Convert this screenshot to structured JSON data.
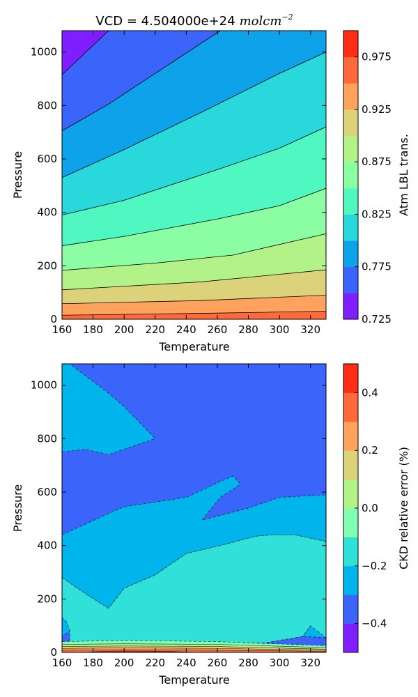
{
  "chart_data": [
    {
      "type": "contourf",
      "title_prefix": "VCD = 4.504000e+24",
      "title_units": "molcm",
      "title_exponent": "−2",
      "xlabel": "Temperature",
      "ylabel": "Pressure",
      "xlim": [
        160,
        330
      ],
      "ylim": [
        0,
        1080
      ],
      "xticks": [
        "160",
        "180",
        "200",
        "220",
        "240",
        "260",
        "280",
        "300",
        "320"
      ],
      "yticks": [
        "0",
        "200",
        "400",
        "600",
        "800",
        "1000"
      ],
      "colorbar": {
        "label": "Atm LBL trans.",
        "levels": [
          0.725,
          0.75,
          0.775,
          0.8,
          0.825,
          0.85,
          0.875,
          0.9,
          0.925,
          0.95,
          0.975,
          1.0
        ],
        "ticks": [
          "0.725",
          "0.775",
          "0.825",
          "0.875",
          "0.925",
          "0.975"
        ],
        "colors": [
          "#7f1fff",
          "#3b64fa",
          "#0ea2eb",
          "#28d8db",
          "#51f7c0",
          "#8bfea4",
          "#b2f288",
          "#dcd27a",
          "#ffa25d",
          "#ff6a3b",
          "#ff2d16"
        ]
      },
      "contour_lines": [
        {
          "level": 0.75,
          "points": [
            [
              160,
              915
            ],
            [
              190,
              1080
            ]
          ]
        },
        {
          "level": 0.775,
          "points": [
            [
              160,
              705
            ],
            [
              190,
              805
            ],
            [
              220,
              920
            ],
            [
              262,
              1080
            ]
          ]
        },
        {
          "level": 0.8,
          "points": [
            [
              160,
              530
            ],
            [
              200,
              635
            ],
            [
              250,
              775
            ],
            [
              300,
              920
            ],
            [
              330,
              1000
            ]
          ]
        },
        {
          "level": 0.825,
          "points": [
            [
              160,
              390
            ],
            [
              200,
              445
            ],
            [
              260,
              560
            ],
            [
              300,
              640
            ],
            [
              330,
              720
            ]
          ]
        },
        {
          "level": 0.85,
          "points": [
            [
              160,
              275
            ],
            [
              200,
              310
            ],
            [
              260,
              375
            ],
            [
              300,
              425
            ],
            [
              330,
              490
            ]
          ]
        },
        {
          "level": 0.875,
          "points": [
            [
              160,
              183
            ],
            [
              220,
              210
            ],
            [
              270,
              240
            ],
            [
              330,
              320
            ]
          ]
        },
        {
          "level": 0.9,
          "points": [
            [
              160,
              110
            ],
            [
              250,
              140
            ],
            [
              330,
              185
            ]
          ]
        },
        {
          "level": 0.925,
          "points": [
            [
              160,
              58
            ],
            [
              250,
              70
            ],
            [
              330,
              90
            ]
          ]
        },
        {
          "level": 0.95,
          "points": [
            [
              160,
              15
            ],
            [
              250,
              22
            ],
            [
              330,
              30
            ]
          ]
        }
      ]
    },
    {
      "type": "contourf",
      "xlabel": "Temperature",
      "ylabel": "Pressure",
      "xlim": [
        160,
        330
      ],
      "ylim": [
        0,
        1080
      ],
      "xticks": [
        "160",
        "180",
        "200",
        "220",
        "240",
        "260",
        "280",
        "300",
        "320"
      ],
      "yticks": [
        "0",
        "200",
        "400",
        "600",
        "800",
        "1000"
      ],
      "colorbar": {
        "label": "CKD relative error (%)",
        "levels": [
          -0.5,
          -0.4,
          -0.3,
          -0.2,
          -0.1,
          0.0,
          0.1,
          0.2,
          0.3,
          0.4,
          0.5
        ],
        "ticks": [
          "−0.4",
          "−0.2",
          "0.0",
          "0.2",
          "0.4"
        ],
        "tick_values": [
          -0.4,
          -0.2,
          0.0,
          0.2,
          0.4
        ],
        "colors": [
          "#7f1fff",
          "#3b64fa",
          "#00b5eb",
          "#30e1d9",
          "#80ffb4",
          "#b2f288",
          "#dcd27a",
          "#ffa25d",
          "#ff6a3b",
          "#ff2d16"
        ]
      },
      "regions": [
        {
          "value_range": [
            -0.3,
            -0.2
          ],
          "points": [
            [
              160,
              440
            ],
            [
              190,
              520
            ],
            [
              200,
              545
            ],
            [
              240,
              580
            ],
            [
              262,
              640
            ],
            [
              270,
              660
            ],
            [
              275,
              630
            ],
            [
              262,
              580
            ],
            [
              250,
              495
            ],
            [
              280,
              540
            ],
            [
              300,
              580
            ],
            [
              330,
              590
            ],
            [
              330,
              415
            ],
            [
              310,
              440
            ],
            [
              295,
              440
            ],
            [
              285,
              435
            ],
            [
              262,
              400
            ],
            [
              240,
              370
            ],
            [
              220,
              290
            ],
            [
              200,
              240
            ],
            [
              190,
              165
            ],
            [
              175,
              220
            ],
            [
              160,
              280
            ]
          ]
        },
        {
          "value_range": [
            -0.3,
            -0.2
          ],
          "points": [
            [
              160,
              750
            ],
            [
              175,
              760
            ],
            [
              190,
              740
            ],
            [
              210,
              780
            ],
            [
              220,
              800
            ],
            [
              200,
              920
            ],
            [
              190,
              970
            ],
            [
              165,
              1080
            ],
            [
              160,
              1080
            ]
          ]
        },
        {
          "value_range": [
            -0.3,
            -0.2
          ],
          "points": [
            [
              160,
              130
            ],
            [
              163,
              115
            ],
            [
              165,
              80
            ],
            [
              160,
              60
            ]
          ]
        },
        {
          "value_range": [
            -0.3,
            -0.2
          ],
          "points": [
            [
              315,
              60
            ],
            [
              320,
              100
            ],
            [
              330,
              110
            ],
            [
              330,
              55
            ]
          ]
        },
        {
          "value_range": [
            -0.2,
            -0.1
          ],
          "points": [
            [
              160,
              280
            ],
            [
              175,
              220
            ],
            [
              190,
              165
            ],
            [
              200,
              240
            ],
            [
              220,
              290
            ],
            [
              240,
              370
            ],
            [
              262,
              400
            ],
            [
              285,
              435
            ],
            [
              295,
              440
            ],
            [
              310,
              440
            ],
            [
              330,
              415
            ],
            [
              330,
              55
            ],
            [
              320,
              100
            ],
            [
              315,
              60
            ],
            [
              290,
              35
            ],
            [
              240,
              40
            ],
            [
              200,
              45
            ],
            [
              165,
              40
            ],
            [
              165,
              80
            ],
            [
              163,
              115
            ],
            [
              160,
              130
            ]
          ]
        }
      ],
      "lower_bands": [
        {
          "value_range": [
            -0.1,
            0.0
          ],
          "points": [
            [
              160,
              40
            ],
            [
              200,
              45
            ],
            [
              260,
              40
            ],
            [
              330,
              25
            ]
          ]
        },
        {
          "value_range": [
            0.0,
            0.1
          ],
          "points": [
            [
              160,
              30
            ],
            [
              200,
              32
            ],
            [
              260,
              30
            ],
            [
              330,
              18
            ]
          ]
        },
        {
          "value_range": [
            0.1,
            0.2
          ],
          "points": [
            [
              160,
              22
            ],
            [
              200,
              24
            ],
            [
              260,
              22
            ],
            [
              330,
              12
            ]
          ]
        },
        {
          "value_range": [
            0.2,
            0.3
          ],
          "points": [
            [
              160,
              15
            ],
            [
              200,
              17
            ],
            [
              260,
              15
            ],
            [
              330,
              8
            ]
          ]
        },
        {
          "value_range": [
            0.3,
            0.4
          ],
          "points": [
            [
              160,
              8
            ],
            [
              200,
              10
            ],
            [
              260,
              8
            ],
            [
              330,
              4
            ]
          ]
        },
        {
          "value_range": [
            0.4,
            0.5
          ],
          "points": [
            [
              175,
              0
            ],
            [
              185,
              4
            ],
            [
              200,
              5
            ],
            [
              230,
              4
            ],
            [
              245,
              0
            ]
          ]
        }
      ]
    }
  ]
}
